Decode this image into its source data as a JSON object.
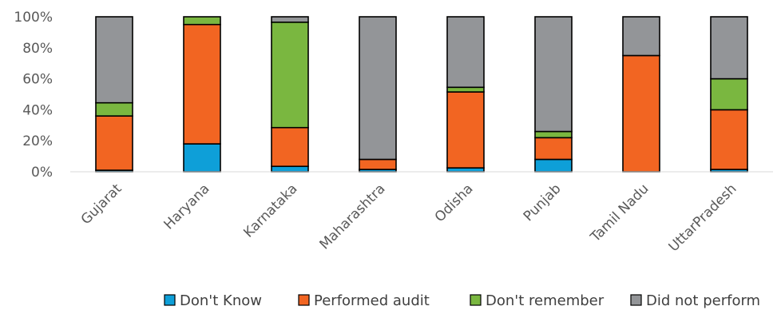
{
  "chart_data": {
    "type": "bar",
    "stacked": true,
    "percent": true,
    "categories": [
      "Gujarat",
      "Haryana",
      "Karnataka",
      "Maharashtra",
      "Odisha",
      "Punjab",
      "Tamil Nadu",
      "UttarPradesh"
    ],
    "series": [
      {
        "name": "Don't Know",
        "color": "#0e9fd8",
        "values": [
          1,
          18,
          3.5,
          1.5,
          2.5,
          8,
          0,
          1.5
        ]
      },
      {
        "name": "Performed audit",
        "color": "#f26522",
        "values": [
          35,
          77,
          25,
          6.5,
          49,
          14,
          75,
          38.5
        ]
      },
      {
        "name": "Don't remember",
        "color": "#7ab740",
        "values": [
          8.5,
          5,
          68,
          0,
          3,
          4,
          0,
          20
        ]
      },
      {
        "name": "Did not perform",
        "color": "#939598",
        "values": [
          55.5,
          0,
          3.5,
          92,
          45.5,
          74,
          25,
          40
        ]
      }
    ],
    "ylim": [
      0,
      100
    ],
    "yticks": [
      "0%",
      "20%",
      "40%",
      "60%",
      "80%",
      "100%"
    ],
    "grid": false,
    "legend_position": "bottom",
    "title": "",
    "xlabel": "",
    "ylabel": ""
  }
}
